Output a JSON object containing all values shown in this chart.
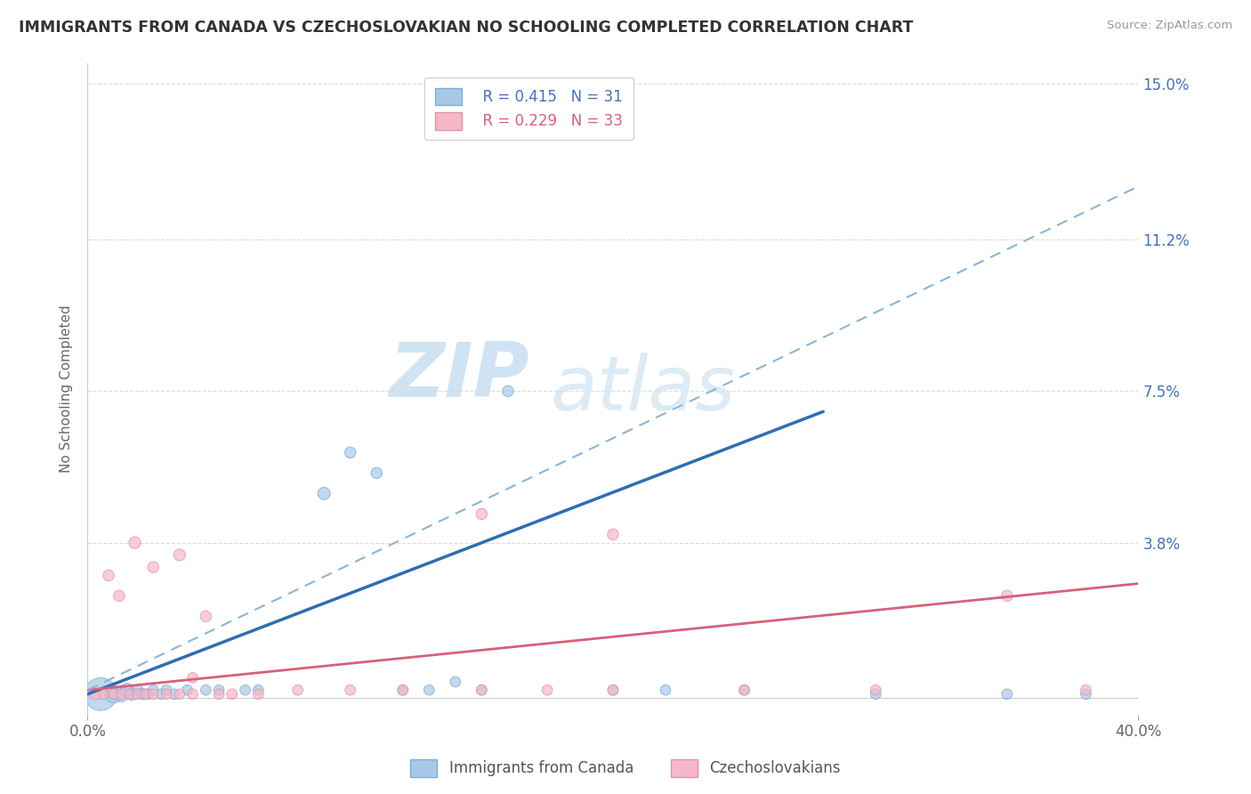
{
  "title": "IMMIGRANTS FROM CANADA VS CZECHOSLOVAKIAN NO SCHOOLING COMPLETED CORRELATION CHART",
  "source": "Source: ZipAtlas.com",
  "ylabel": "No Schooling Completed",
  "xlim": [
    0.0,
    0.4
  ],
  "ylim": [
    -0.004,
    0.155
  ],
  "xticks": [
    0.0,
    0.4
  ],
  "xtick_labels": [
    "0.0%",
    "40.0%"
  ],
  "ytick_vals": [
    0.038,
    0.075,
    0.112,
    0.15
  ],
  "ytick_labels": [
    "3.8%",
    "7.5%",
    "11.2%",
    "15.0%"
  ],
  "blue_color": "#a8c8e8",
  "pink_color": "#f4b8c8",
  "blue_line_color": "#2e6db4",
  "pink_line_color": "#d9607a",
  "dashed_line_color": "#8ab4d8",
  "legend_blue_r": "R = 0.415",
  "legend_blue_n": "N = 31",
  "legend_pink_r": "R = 0.229",
  "legend_pink_n": "N = 33",
  "watermark_zip": "ZIP",
  "watermark_atlas": "atlas",
  "blue_scatter_x": [
    0.005,
    0.01,
    0.013,
    0.015,
    0.017,
    0.019,
    0.021,
    0.023,
    0.025,
    0.028,
    0.03,
    0.033,
    0.038,
    0.045,
    0.05,
    0.06,
    0.065,
    0.09,
    0.1,
    0.11,
    0.12,
    0.13,
    0.14,
    0.15,
    0.16,
    0.2,
    0.22,
    0.25,
    0.3,
    0.35,
    0.38
  ],
  "blue_scatter_y": [
    0.001,
    0.001,
    0.001,
    0.002,
    0.001,
    0.002,
    0.001,
    0.001,
    0.002,
    0.001,
    0.002,
    0.001,
    0.002,
    0.002,
    0.002,
    0.002,
    0.002,
    0.05,
    0.06,
    0.055,
    0.002,
    0.002,
    0.004,
    0.002,
    0.075,
    0.002,
    0.002,
    0.002,
    0.001,
    0.001,
    0.001
  ],
  "blue_scatter_sizes": [
    700,
    200,
    150,
    120,
    100,
    80,
    80,
    70,
    70,
    70,
    70,
    70,
    70,
    70,
    70,
    70,
    70,
    100,
    80,
    80,
    70,
    70,
    70,
    70,
    80,
    70,
    70,
    70,
    70,
    70,
    70
  ],
  "pink_scatter_x": [
    0.003,
    0.006,
    0.01,
    0.013,
    0.016,
    0.019,
    0.022,
    0.025,
    0.03,
    0.035,
    0.04,
    0.05,
    0.055,
    0.065,
    0.008,
    0.012,
    0.018,
    0.025,
    0.035,
    0.045,
    0.08,
    0.1,
    0.12,
    0.15,
    0.175,
    0.2,
    0.25,
    0.3,
    0.35,
    0.38,
    0.15,
    0.2,
    0.04
  ],
  "pink_scatter_y": [
    0.001,
    0.001,
    0.001,
    0.001,
    0.001,
    0.001,
    0.001,
    0.001,
    0.001,
    0.001,
    0.001,
    0.001,
    0.001,
    0.001,
    0.03,
    0.025,
    0.038,
    0.032,
    0.035,
    0.02,
    0.002,
    0.002,
    0.002,
    0.002,
    0.002,
    0.002,
    0.002,
    0.002,
    0.025,
    0.002,
    0.045,
    0.04,
    0.005
  ],
  "pink_scatter_sizes": [
    80,
    70,
    70,
    70,
    70,
    70,
    70,
    70,
    70,
    70,
    70,
    70,
    70,
    70,
    80,
    80,
    90,
    80,
    90,
    80,
    70,
    70,
    70,
    70,
    70,
    70,
    70,
    70,
    80,
    70,
    80,
    80,
    70
  ],
  "blue_trend_x": [
    0.0,
    0.28
  ],
  "blue_trend_y": [
    0.001,
    0.07
  ],
  "pink_trend_x": [
    0.0,
    0.4
  ],
  "pink_trend_y": [
    0.002,
    0.028
  ],
  "dashed_trend_x": [
    0.0,
    0.4
  ],
  "dashed_trend_y": [
    0.002,
    0.125
  ]
}
